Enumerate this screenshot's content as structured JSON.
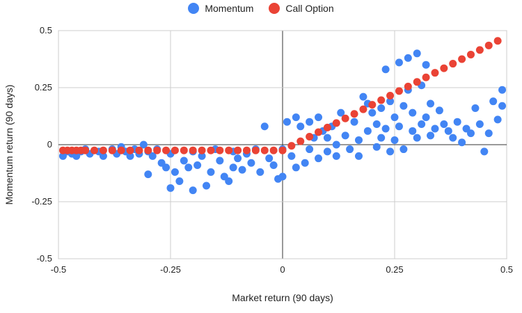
{
  "chart_data": {
    "type": "scatter",
    "xlabel": "Market return (90 days)",
    "ylabel": "Momentum return (90 days)",
    "xlim": [
      -0.5,
      0.5
    ],
    "ylim": [
      -0.5,
      0.5
    ],
    "x_ticks": [
      "-0.5",
      "-0.25",
      "0",
      "0.25",
      "0.5"
    ],
    "y_ticks": [
      "0.5",
      "0.25",
      "0",
      "-0.25",
      "-0.5"
    ],
    "grid": true,
    "legend_position": "top-center",
    "legend": [
      {
        "name": "Momentum",
        "color": "#4285f4"
      },
      {
        "name": "Call Option",
        "color": "#ea4335"
      }
    ],
    "series": [
      {
        "name": "Momentum",
        "color": "#4285f4",
        "points": [
          [
            -0.49,
            -0.05
          ],
          [
            -0.48,
            -0.03
          ],
          [
            -0.47,
            -0.04
          ],
          [
            -0.46,
            -0.05
          ],
          [
            -0.45,
            -0.03
          ],
          [
            -0.44,
            -0.02
          ],
          [
            -0.43,
            -0.04
          ],
          [
            -0.41,
            -0.03
          ],
          [
            -0.4,
            -0.05
          ],
          [
            -0.38,
            -0.02
          ],
          [
            -0.37,
            -0.04
          ],
          [
            -0.36,
            -0.01
          ],
          [
            -0.35,
            -0.03
          ],
          [
            -0.34,
            -0.05
          ],
          [
            -0.33,
            -0.02
          ],
          [
            -0.32,
            -0.04
          ],
          [
            -0.31,
            0.0
          ],
          [
            -0.3,
            -0.03
          ],
          [
            -0.3,
            -0.13
          ],
          [
            -0.29,
            -0.05
          ],
          [
            -0.28,
            -0.02
          ],
          [
            -0.27,
            -0.08
          ],
          [
            -0.26,
            -0.1
          ],
          [
            -0.25,
            -0.04
          ],
          [
            -0.25,
            -0.19
          ],
          [
            -0.24,
            -0.12
          ],
          [
            -0.23,
            -0.16
          ],
          [
            -0.22,
            -0.07
          ],
          [
            -0.21,
            -0.1
          ],
          [
            -0.2,
            -0.2
          ],
          [
            -0.2,
            -0.03
          ],
          [
            -0.19,
            -0.09
          ],
          [
            -0.18,
            -0.05
          ],
          [
            -0.17,
            -0.18
          ],
          [
            -0.16,
            -0.12
          ],
          [
            -0.15,
            -0.02
          ],
          [
            -0.14,
            -0.07
          ],
          [
            -0.13,
            -0.14
          ],
          [
            -0.12,
            -0.16
          ],
          [
            -0.11,
            -0.03
          ],
          [
            -0.11,
            -0.1
          ],
          [
            -0.1,
            -0.06
          ],
          [
            -0.09,
            -0.11
          ],
          [
            -0.08,
            -0.04
          ],
          [
            -0.07,
            -0.08
          ],
          [
            -0.06,
            -0.02
          ],
          [
            -0.05,
            -0.12
          ],
          [
            -0.04,
            0.08
          ],
          [
            -0.03,
            -0.06
          ],
          [
            -0.02,
            -0.09
          ],
          [
            -0.01,
            -0.15
          ],
          [
            0.0,
            -0.14
          ],
          [
            0.0,
            -0.02
          ],
          [
            0.01,
            0.1
          ],
          [
            0.02,
            -0.05
          ],
          [
            0.03,
            -0.1
          ],
          [
            0.03,
            0.12
          ],
          [
            0.04,
            0.08
          ],
          [
            0.05,
            -0.08
          ],
          [
            0.06,
            -0.02
          ],
          [
            0.06,
            0.1
          ],
          [
            0.07,
            0.03
          ],
          [
            0.08,
            -0.06
          ],
          [
            0.08,
            0.12
          ],
          [
            0.09,
            0.06
          ],
          [
            0.1,
            -0.03
          ],
          [
            0.1,
            0.03
          ],
          [
            0.11,
            0.08
          ],
          [
            0.12,
            -0.05
          ],
          [
            0.12,
            0.0
          ],
          [
            0.13,
            0.14
          ],
          [
            0.14,
            0.04
          ],
          [
            0.15,
            -0.02
          ],
          [
            0.16,
            0.1
          ],
          [
            0.17,
            0.02
          ],
          [
            0.17,
            -0.05
          ],
          [
            0.18,
            0.21
          ],
          [
            0.19,
            0.06
          ],
          [
            0.19,
            0.18
          ],
          [
            0.2,
            0.14
          ],
          [
            0.21,
            -0.01
          ],
          [
            0.21,
            0.09
          ],
          [
            0.22,
            0.03
          ],
          [
            0.22,
            0.16
          ],
          [
            0.23,
            0.07
          ],
          [
            0.23,
            0.33
          ],
          [
            0.24,
            -0.03
          ],
          [
            0.24,
            0.19
          ],
          [
            0.25,
            0.02
          ],
          [
            0.25,
            0.12
          ],
          [
            0.26,
            0.36
          ],
          [
            0.26,
            0.08
          ],
          [
            0.27,
            0.17
          ],
          [
            0.27,
            -0.02
          ],
          [
            0.28,
            0.24
          ],
          [
            0.28,
            0.38
          ],
          [
            0.29,
            0.06
          ],
          [
            0.29,
            0.14
          ],
          [
            0.3,
            0.4
          ],
          [
            0.3,
            0.03
          ],
          [
            0.31,
            0.09
          ],
          [
            0.31,
            0.26
          ],
          [
            0.32,
            0.35
          ],
          [
            0.32,
            0.12
          ],
          [
            0.33,
            0.18
          ],
          [
            0.33,
            0.04
          ],
          [
            0.34,
            0.07
          ],
          [
            0.35,
            0.15
          ],
          [
            0.36,
            0.09
          ],
          [
            0.37,
            0.06
          ],
          [
            0.38,
            0.03
          ],
          [
            0.39,
            0.1
          ],
          [
            0.4,
            0.01
          ],
          [
            0.41,
            0.07
          ],
          [
            0.42,
            0.05
          ],
          [
            0.43,
            0.16
          ],
          [
            0.44,
            0.09
          ],
          [
            0.45,
            -0.03
          ],
          [
            0.46,
            0.05
          ],
          [
            0.47,
            0.19
          ],
          [
            0.48,
            0.11
          ],
          [
            0.49,
            0.17
          ],
          [
            0.49,
            0.24
          ]
        ]
      },
      {
        "name": "Call Option",
        "color": "#ea4335",
        "points": [
          [
            -0.49,
            -0.025
          ],
          [
            -0.48,
            -0.025
          ],
          [
            -0.47,
            -0.025
          ],
          [
            -0.46,
            -0.025
          ],
          [
            -0.45,
            -0.025
          ],
          [
            -0.44,
            -0.025
          ],
          [
            -0.42,
            -0.025
          ],
          [
            -0.4,
            -0.025
          ],
          [
            -0.38,
            -0.025
          ],
          [
            -0.36,
            -0.025
          ],
          [
            -0.34,
            -0.025
          ],
          [
            -0.32,
            -0.025
          ],
          [
            -0.3,
            -0.025
          ],
          [
            -0.28,
            -0.025
          ],
          [
            -0.26,
            -0.025
          ],
          [
            -0.24,
            -0.025
          ],
          [
            -0.22,
            -0.025
          ],
          [
            -0.2,
            -0.025
          ],
          [
            -0.18,
            -0.025
          ],
          [
            -0.16,
            -0.025
          ],
          [
            -0.14,
            -0.025
          ],
          [
            -0.12,
            -0.025
          ],
          [
            -0.1,
            -0.025
          ],
          [
            -0.08,
            -0.025
          ],
          [
            -0.06,
            -0.025
          ],
          [
            -0.04,
            -0.025
          ],
          [
            -0.02,
            -0.025
          ],
          [
            0.0,
            -0.025
          ],
          [
            0.02,
            -0.005
          ],
          [
            0.04,
            0.015
          ],
          [
            0.06,
            0.035
          ],
          [
            0.08,
            0.055
          ],
          [
            0.1,
            0.075
          ],
          [
            0.12,
            0.095
          ],
          [
            0.14,
            0.115
          ],
          [
            0.16,
            0.135
          ],
          [
            0.18,
            0.155
          ],
          [
            0.2,
            0.175
          ],
          [
            0.22,
            0.195
          ],
          [
            0.24,
            0.215
          ],
          [
            0.26,
            0.235
          ],
          [
            0.28,
            0.255
          ],
          [
            0.3,
            0.275
          ],
          [
            0.32,
            0.295
          ],
          [
            0.34,
            0.315
          ],
          [
            0.36,
            0.335
          ],
          [
            0.38,
            0.355
          ],
          [
            0.4,
            0.375
          ],
          [
            0.42,
            0.395
          ],
          [
            0.44,
            0.415
          ],
          [
            0.46,
            0.435
          ],
          [
            0.48,
            0.455
          ]
        ]
      }
    ]
  }
}
